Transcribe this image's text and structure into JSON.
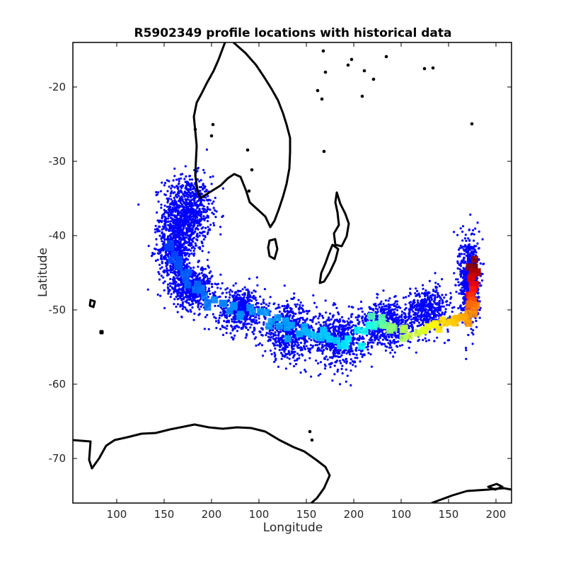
{
  "chart_data": {
    "type": "scatter",
    "title": "R5902349 profile locations with historical data",
    "xlabel": "Longitude",
    "ylabel": "Latitude",
    "x_tick_labels": [
      "100",
      "150",
      "200",
      "100",
      "150",
      "200",
      "100",
      "150",
      "200"
    ],
    "y_ticks": [
      -20,
      -30,
      -40,
      -50,
      -60,
      -70
    ],
    "y_tick_labels": [
      "-20",
      "-30",
      "-40",
      "-50",
      "-60",
      "-70"
    ],
    "ylim": [
      -76,
      -14
    ],
    "grid": false,
    "historical_color": "#0000ff",
    "colormap": "jet",
    "coastline_color": "#000000",
    "historical_clusters": [
      {
        "lon": 145,
        "lat": -37,
        "spread_lon": 20,
        "spread_lat": 5,
        "n": 900
      },
      {
        "lon": 135,
        "lat": -42,
        "spread_lon": 14,
        "spread_lat": 5,
        "n": 600
      },
      {
        "lon": 150,
        "lat": -47,
        "spread_lon": 16,
        "spread_lat": 3,
        "n": 500
      },
      {
        "lon": 190,
        "lat": -50,
        "spread_lon": 20,
        "spread_lat": 3,
        "n": 500
      },
      {
        "lon": 230,
        "lat": -53,
        "spread_lon": 22,
        "spread_lat": 3.5,
        "n": 600
      },
      {
        "lon": 270,
        "lat": -54,
        "spread_lon": 22,
        "spread_lat": 3.5,
        "n": 600
      },
      {
        "lon": 310,
        "lat": -52,
        "spread_lon": 22,
        "spread_lat": 3,
        "n": 600
      },
      {
        "lon": 345,
        "lat": -50,
        "spread_lon": 18,
        "spread_lat": 3,
        "n": 450
      },
      {
        "lon": 380,
        "lat": -46,
        "spread_lon": 8,
        "spread_lat": 6,
        "n": 700
      }
    ],
    "float_track": [
      {
        "lon": 383,
        "lat": -43.5,
        "c": 1.0
      },
      {
        "lon": 383,
        "lat": -45.0,
        "c": 0.95
      },
      {
        "lon": 382,
        "lat": -47.0,
        "c": 0.88
      },
      {
        "lon": 383,
        "lat": -49.0,
        "c": 0.8
      },
      {
        "lon": 382,
        "lat": -50.5,
        "c": 0.74
      },
      {
        "lon": 372,
        "lat": -51.5,
        "c": 0.7
      },
      {
        "lon": 355,
        "lat": -52.2,
        "c": 0.65
      },
      {
        "lon": 335,
        "lat": -52.8,
        "c": 0.58
      },
      {
        "lon": 315,
        "lat": -53.0,
        "c": 0.52
      },
      {
        "lon": 305,
        "lat": -51.0,
        "c": 0.46
      },
      {
        "lon": 295,
        "lat": -52.5,
        "c": 0.4
      },
      {
        "lon": 275,
        "lat": -54.5,
        "c": 0.35
      },
      {
        "lon": 258,
        "lat": -53.5,
        "c": 0.32
      },
      {
        "lon": 240,
        "lat": -53.0,
        "c": 0.3
      },
      {
        "lon": 222,
        "lat": -52.0,
        "c": 0.28
      },
      {
        "lon": 200,
        "lat": -50.5,
        "c": 0.27
      },
      {
        "lon": 178,
        "lat": -49.5,
        "c": 0.26
      },
      {
        "lon": 160,
        "lat": -48.0,
        "c": 0.24
      },
      {
        "lon": 145,
        "lat": -45.5,
        "c": 0.22
      },
      {
        "lon": 135,
        "lat": -43.0,
        "c": 0.2
      },
      {
        "lon": 130,
        "lat": -40.5,
        "c": 0.18
      }
    ]
  }
}
